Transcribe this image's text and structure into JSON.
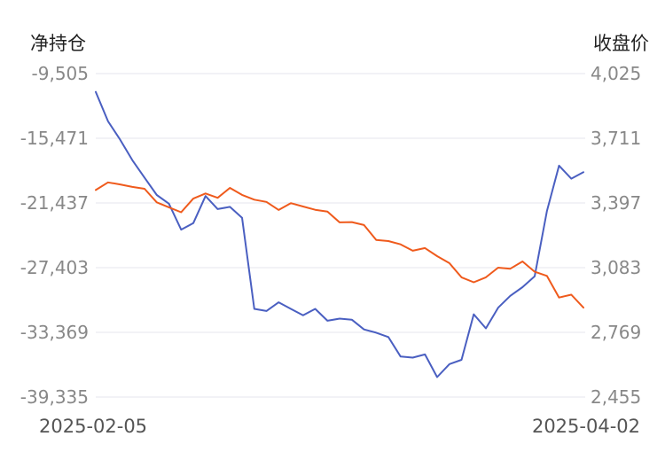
{
  "chart_data": {
    "type": "line",
    "left_axis_title": "净持仓",
    "right_axis_title": "收盘价",
    "left_ticks": [
      "-9,505",
      "-15,471",
      "-21,437",
      "-27,403",
      "-33,369",
      "-39,335"
    ],
    "right_ticks": [
      "4,025",
      "3,711",
      "3,397",
      "3,083",
      "2,769",
      "2,455"
    ],
    "left_ylim": [
      -39335,
      -9505
    ],
    "right_ylim": [
      2455,
      4025
    ],
    "x_start_label": "2025-02-05",
    "x_end_label": "2025-04-02",
    "grid": true,
    "series": [
      {
        "axis": "left",
        "color": "#4a5fc1",
        "values": [
          -11200,
          -13900,
          -15600,
          -17500,
          -19100,
          -20700,
          -21500,
          -23900,
          -23300,
          -20800,
          -22000,
          -21800,
          -22800,
          -31200,
          -31400,
          -30600,
          -31200,
          -31800,
          -31200,
          -32300,
          -32100,
          -32200,
          -33100,
          -33400,
          -33800,
          -35600,
          -35700,
          -35400,
          -37500,
          -36300,
          -35900,
          -31700,
          -33000,
          -31100,
          -30000,
          -29200,
          -28200,
          -22200,
          -18000,
          -19200,
          -18600
        ]
      },
      {
        "axis": "right",
        "color": "#ef5a1c",
        "values": [
          3460,
          3497,
          3487,
          3475,
          3466,
          3400,
          3376,
          3352,
          3418,
          3443,
          3422,
          3470,
          3436,
          3413,
          3402,
          3363,
          3396,
          3380,
          3364,
          3355,
          3303,
          3304,
          3290,
          3217,
          3212,
          3196,
          3165,
          3178,
          3139,
          3105,
          3036,
          3012,
          3036,
          3083,
          3078,
          3113,
          3063,
          3043,
          2938,
          2952,
          2889
        ]
      }
    ]
  }
}
